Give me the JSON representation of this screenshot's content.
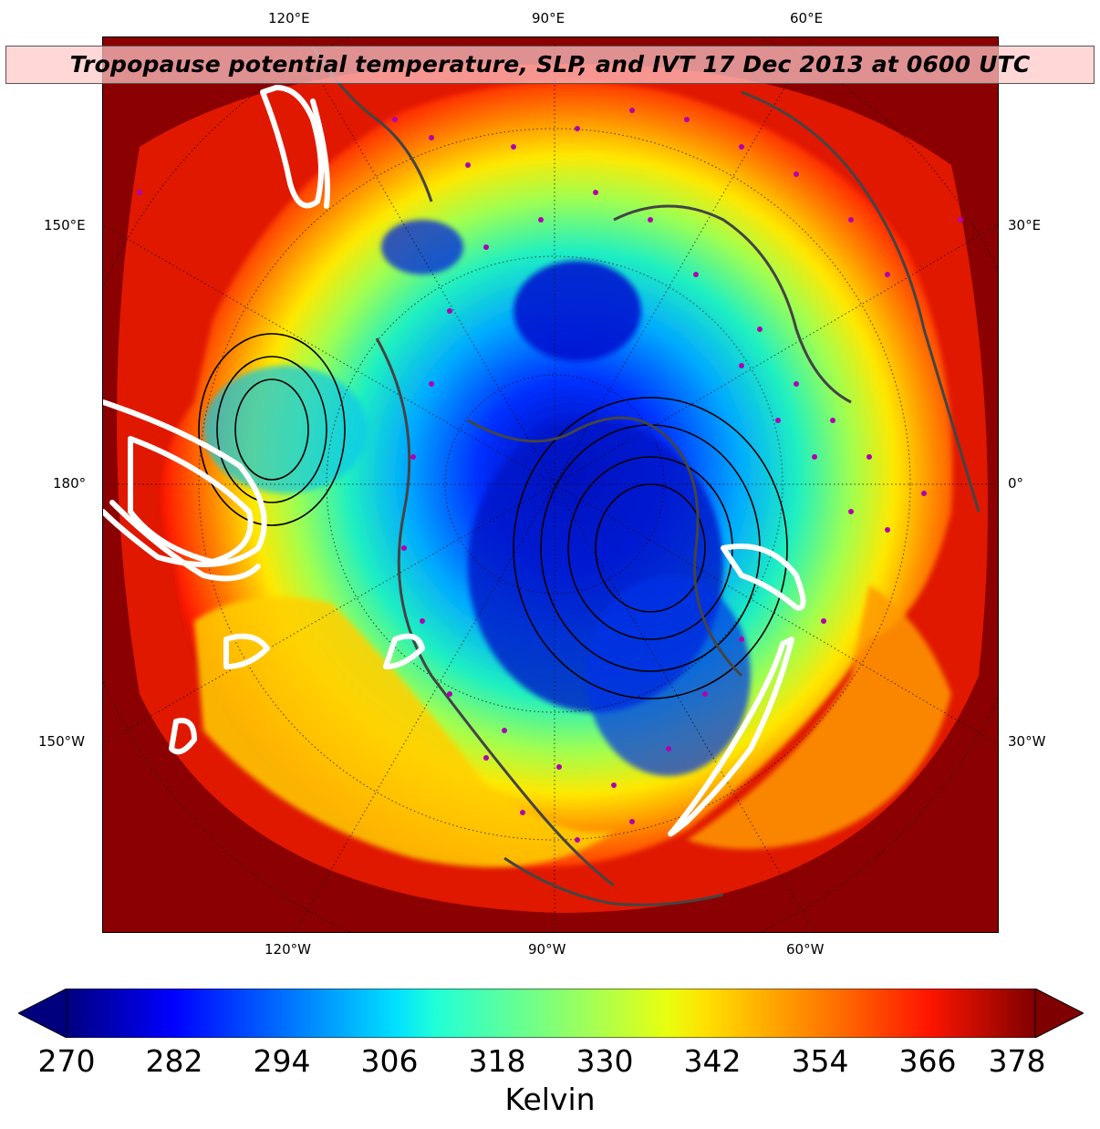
{
  "title": "Tropopause potential temperature, SLP, and IVT 17 Dec 2013 at 0600 UTC",
  "top_longitude_labels": [
    "120°E",
    "90°E",
    "60°E"
  ],
  "bottom_longitude_labels": [
    "120°W",
    "90°W",
    "60°W"
  ],
  "left_longitude_labels": [
    "150°E",
    "180°",
    "150°W"
  ],
  "right_longitude_labels": [
    "30°E",
    "0°",
    "30°W"
  ],
  "colorbar": {
    "label": "Kelvin",
    "min": 270,
    "max": 378,
    "ticks": [
      "270",
      "282",
      "294",
      "306",
      "318",
      "330",
      "342",
      "354",
      "366",
      "378"
    ],
    "colormap": "jet",
    "extend": "both",
    "colors": [
      "#00007f",
      "#0000ff",
      "#007fff",
      "#00ffff",
      "#7fff7f",
      "#ffff00",
      "#ff7f00",
      "#ff0000",
      "#7f0000"
    ]
  },
  "overlays": {
    "ivt_contour_color": "#ffffff",
    "slp_contour_color": "#000000",
    "coastline_color": "#444444",
    "station_marker_color": "#b000b0"
  }
}
